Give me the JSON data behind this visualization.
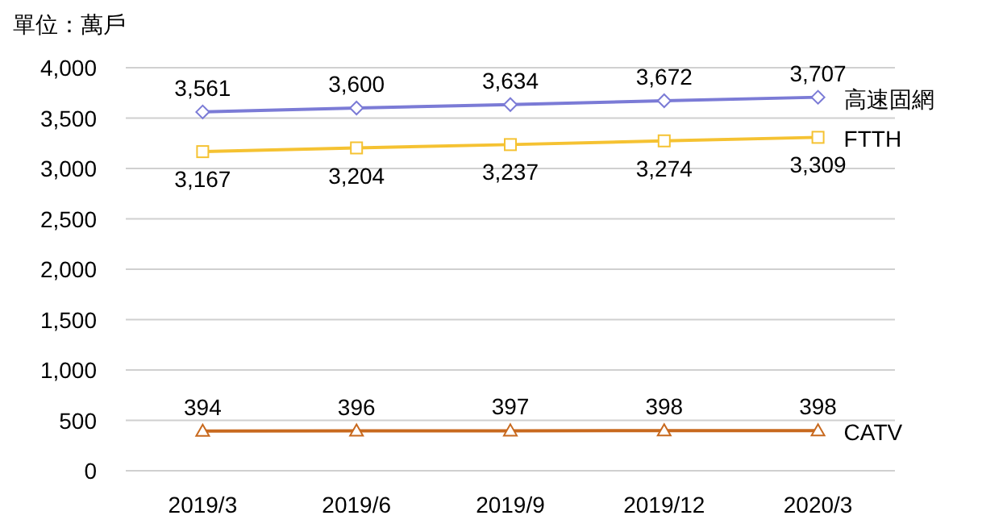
{
  "chart_data": {
    "type": "line",
    "ylabel": "單位：萬戶",
    "categories": [
      "2019/3",
      "2019/6",
      "2019/9",
      "2019/12",
      "2020/3"
    ],
    "series": [
      {
        "name": "高速固網",
        "color": "#7b7bd6",
        "marker": "diamond",
        "values": [
          3561,
          3600,
          3634,
          3672,
          3707
        ],
        "value_labels": [
          "3,561",
          "3,600",
          "3,634",
          "3,672",
          "3,707"
        ]
      },
      {
        "name": "FTTH",
        "color": "#f5c232",
        "marker": "square",
        "values": [
          3167,
          3204,
          3237,
          3274,
          3309
        ],
        "value_labels": [
          "3,167",
          "3,204",
          "3,237",
          "3,274",
          "3,309"
        ]
      },
      {
        "name": "CATV",
        "color": "#c8691e",
        "marker": "triangle",
        "values": [
          394,
          396,
          397,
          398,
          398
        ],
        "value_labels": [
          "394",
          "396",
          "397",
          "398",
          "398"
        ]
      }
    ],
    "ylim": [
      0,
      4000
    ],
    "yticks": [
      {
        "value": 0,
        "label": "0"
      },
      {
        "value": 500,
        "label": "500"
      },
      {
        "value": 1000,
        "label": "1,000"
      },
      {
        "value": 1500,
        "label": "1,500"
      },
      {
        "value": 2000,
        "label": "2,000"
      },
      {
        "value": 2500,
        "label": "2,500"
      },
      {
        "value": 3000,
        "label": "3,000"
      },
      {
        "value": 3500,
        "label": "3,500"
      },
      {
        "value": 4000,
        "label": "4,000"
      }
    ],
    "grid": "y"
  }
}
